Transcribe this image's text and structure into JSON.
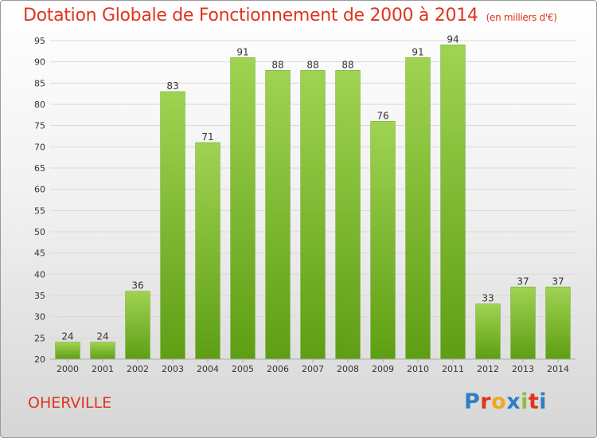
{
  "header": {
    "title": "Dotation Globale de Fonctionnement de 2000 à 2014",
    "subtitle": "(en milliers d'€)"
  },
  "footer": {
    "commune": "OHERVILLE",
    "brand": "Proxiti",
    "brand_colors": [
      "#2f7fc1",
      "#e0341e",
      "#f0a81e",
      "#2f7fc1",
      "#8dc03a",
      "#e0341e",
      "#2f7fc1"
    ]
  },
  "colors": {
    "bar_top": "#9fd352",
    "bar_bottom": "#5e9e14",
    "grid": "#d9d9d9",
    "text": "#333333",
    "accent": "#e0341e"
  },
  "chart_data": {
    "type": "bar",
    "title": "Dotation Globale de Fonctionnement de 2000 à 2014",
    "subtitle": "(en milliers d'€)",
    "xlabel": "",
    "ylabel": "",
    "categories": [
      "2000",
      "2001",
      "2002",
      "2003",
      "2004",
      "2005",
      "2006",
      "2007",
      "2008",
      "2009",
      "2010",
      "2011",
      "2012",
      "2013",
      "2014"
    ],
    "values": [
      24,
      24,
      36,
      83,
      71,
      91,
      88,
      88,
      88,
      76,
      91,
      94,
      33,
      37,
      37
    ],
    "ylim": [
      20,
      95
    ],
    "yticks": [
      20,
      25,
      30,
      35,
      40,
      45,
      50,
      55,
      60,
      65,
      70,
      75,
      80,
      85,
      90,
      95
    ],
    "grid": true,
    "legend": "none"
  }
}
